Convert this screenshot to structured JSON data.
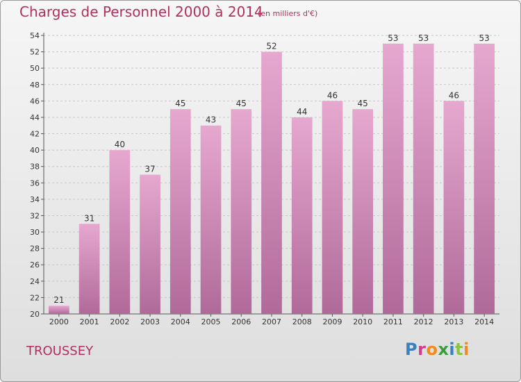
{
  "header": {
    "title": "Charges de Personnel 2000 à 2014",
    "subtitle": "(en milliers d'€)"
  },
  "footer": {
    "place": "TROUSSEY",
    "logo": "Proxiti"
  },
  "colors": {
    "bar_top": "#e6a8cf",
    "bar_bottom": "#b06a9a",
    "title": "#b03060",
    "logo_letters": [
      "#3a7fc0",
      "#d23c8c",
      "#f08c1e",
      "#3a9c3a",
      "#3a7fc0",
      "#8cc43c",
      "#f08c1e"
    ]
  },
  "chart_data": {
    "type": "bar",
    "title": "Charges de Personnel 2000 à 2014",
    "subtitle": "(en milliers d'€)",
    "categories": [
      "2000",
      "2001",
      "2002",
      "2003",
      "2004",
      "2005",
      "2006",
      "2007",
      "2008",
      "2009",
      "2010",
      "2011",
      "2012",
      "2013",
      "2014"
    ],
    "values": [
      21,
      31,
      40,
      37,
      45,
      43,
      45,
      52,
      44,
      46,
      45,
      53,
      53,
      46,
      53
    ],
    "ylim": [
      20,
      54
    ],
    "yticks": [
      20,
      22,
      24,
      26,
      28,
      30,
      32,
      34,
      36,
      38,
      40,
      42,
      44,
      46,
      48,
      50,
      52,
      54
    ],
    "grid": true,
    "legend": "none"
  }
}
